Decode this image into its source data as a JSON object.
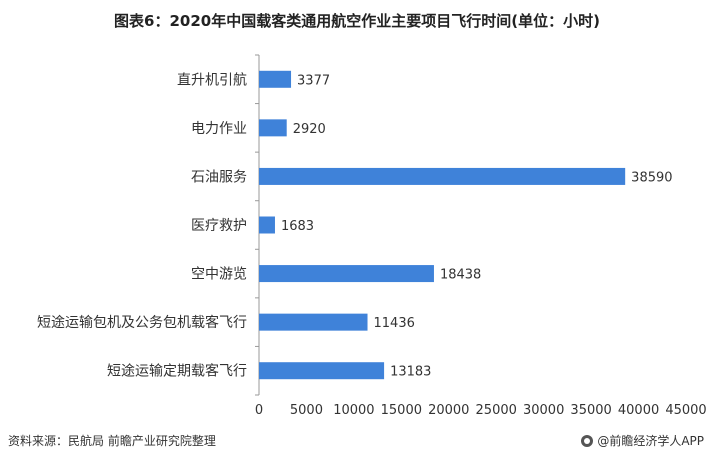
{
  "title": "图表6：2020年中国载客类通用航空作业主要项目飞行时间(单位：小时)",
  "footer": {
    "source": "资料来源：民航局 前瞻产业研究院整理",
    "brand": "@前瞻经济学人APP"
  },
  "colors": {
    "bar": "#3f82d9",
    "axis": "#999999",
    "text": "#333333"
  },
  "chart_data": {
    "type": "bar",
    "orientation": "horizontal",
    "categories": [
      "直升机引航",
      "电力作业",
      "石油服务",
      "医疗救护",
      "空中游览",
      "短途运输包机及公务包机载客飞行",
      "短途运输定期载客飞行"
    ],
    "values": [
      3377,
      2920,
      38590,
      1683,
      18438,
      11436,
      13183
    ],
    "xlim": [
      0,
      45000
    ],
    "xticks": [
      0,
      5000,
      10000,
      15000,
      20000,
      25000,
      30000,
      35000,
      40000,
      45000
    ],
    "grid": false,
    "legend": "none"
  }
}
